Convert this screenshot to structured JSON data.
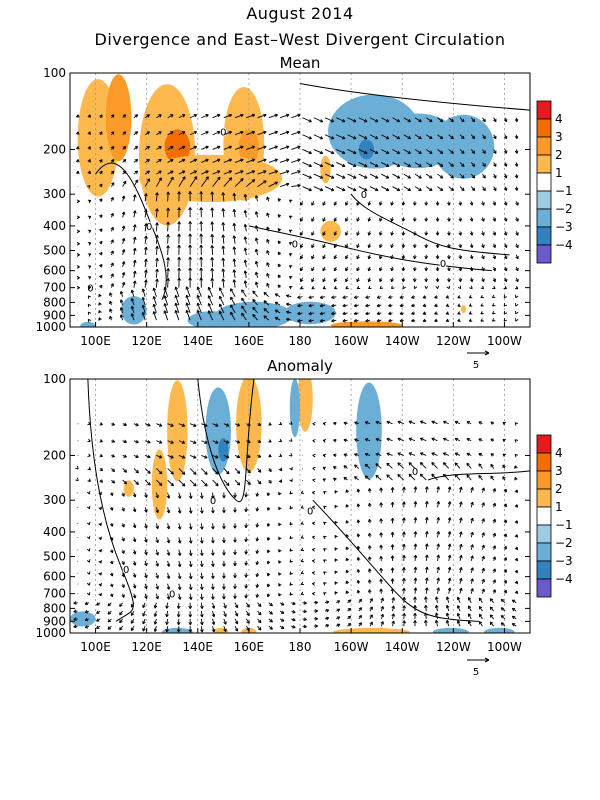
{
  "title": "August 2014",
  "subtitle": "Divergence and East–West Divergent Circulation",
  "chart_data": [
    {
      "type": "heatmap",
      "title": "Mean",
      "x_ticks": [
        "100E",
        "120E",
        "140E",
        "160E",
        "180",
        "160W",
        "140W",
        "120W",
        "100W"
      ],
      "x_tick_lon": [
        100,
        120,
        140,
        160,
        180,
        200,
        220,
        240,
        260
      ],
      "x_range": [
        90,
        270
      ],
      "y_ticks": [
        "100",
        "200",
        "300",
        "400",
        "500",
        "600",
        "700",
        "800",
        "900",
        "1000"
      ],
      "y_tick_values": [
        100,
        200,
        300,
        400,
        500,
        600,
        700,
        800,
        900,
        1000
      ],
      "y_range": [
        100,
        1000
      ],
      "y_scale": "log",
      "colorbar_labels": [
        "4",
        "3",
        "2",
        "1",
        "−1",
        "−2",
        "−3",
        "−4"
      ],
      "colorbar_colors": [
        "#e41a1c",
        "#f46d00",
        "#fb9a29",
        "#fdb94d",
        "#ffffff",
        "#9ecae1",
        "#6baed6",
        "#3182bd",
        "#6a5acd"
      ],
      "vector_reference": "5",
      "contour_label": "0"
    },
    {
      "type": "heatmap",
      "title": "Anomaly",
      "x_ticks": [
        "100E",
        "120E",
        "140E",
        "160E",
        "180",
        "160W",
        "140W",
        "120W",
        "100W"
      ],
      "x_tick_lon": [
        100,
        120,
        140,
        160,
        180,
        200,
        220,
        240,
        260
      ],
      "x_range": [
        90,
        270
      ],
      "y_ticks": [
        "100",
        "200",
        "300",
        "400",
        "500",
        "600",
        "700",
        "800",
        "900",
        "1000"
      ],
      "y_tick_values": [
        100,
        200,
        300,
        400,
        500,
        600,
        700,
        800,
        900,
        1000
      ],
      "y_range": [
        100,
        1000
      ],
      "y_scale": "log",
      "colorbar_labels": [
        "4",
        "3",
        "2",
        "1",
        "−1",
        "−2",
        "−3",
        "−4"
      ],
      "colorbar_colors": [
        "#e41a1c",
        "#f46d00",
        "#fb9a29",
        "#fdb94d",
        "#ffffff",
        "#9ecae1",
        "#6baed6",
        "#3182bd",
        "#6a5acd"
      ],
      "vector_reference": "5",
      "contour_label": "0"
    }
  ]
}
